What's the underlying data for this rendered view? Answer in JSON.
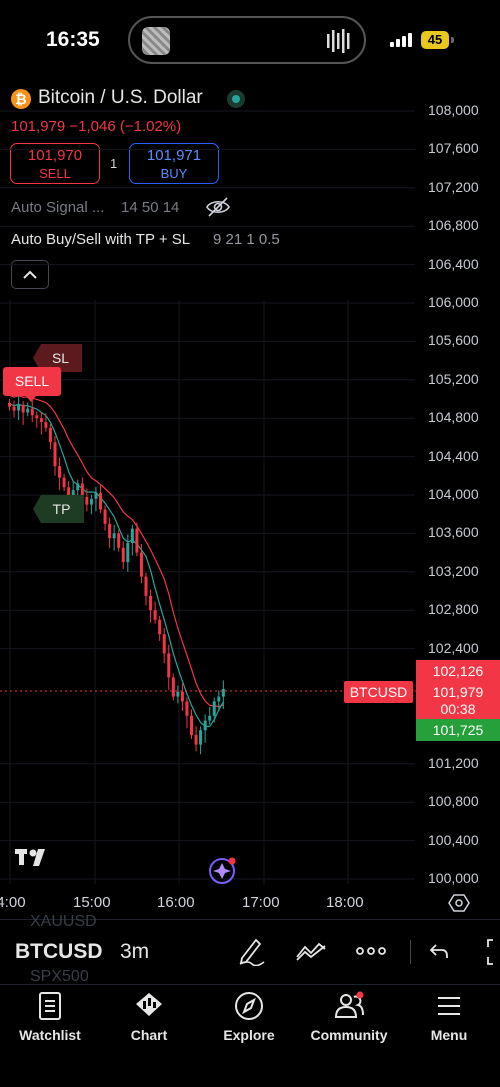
{
  "status_bar": {
    "time": "16:35",
    "battery": "45"
  },
  "header": {
    "coin_symbol": "₿",
    "title": "Bitcoin / U.S. Dollar",
    "price_line": "101,979 −1,046 (−1.02%)",
    "sell_price": "101,970",
    "sell_label": "SELL",
    "quantity": "1",
    "buy_price": "101,971",
    "buy_label": "BUY"
  },
  "indicators": {
    "auto_signal_label": "Auto Signal ...",
    "auto_signal_params": "14 50 14",
    "buy_sell_label": "Auto Buy/Sell with TP + SL",
    "buy_sell_params": "9 21 1 0.5"
  },
  "chart_data": {
    "type": "candlestick",
    "symbol": "BTCUSD",
    "y_ticks": [
      "108,000",
      "107,600",
      "107,200",
      "106,800",
      "106,400",
      "106,000",
      "105,600",
      "105,200",
      "104,800",
      "104,400",
      "104,000",
      "103,600",
      "103,200",
      "102,800",
      "102,400",
      "101,200",
      "100,800",
      "100,400",
      "100,000"
    ],
    "x_ticks": [
      "14:00",
      "15:00",
      "16:00",
      "17:00",
      "18:00"
    ],
    "ylim": [
      99950,
      108150
    ],
    "current_price": "101,979",
    "countdown": "00:38",
    "upper_price": "102,126",
    "lower_price": "101,725",
    "signal_labels": {
      "sl": "SL",
      "tp": "TP",
      "sell": "SELL"
    },
    "colors": {
      "up": "#26a69a",
      "down": "#f23645",
      "fast_ma": "#26a69a",
      "slow_ma": "#f23645"
    }
  },
  "toolbar": {
    "ghost_symbol_top": "XAUUSD",
    "symbol": "BTCUSD",
    "interval": "3m",
    "ghost_symbol_bottom": "SPX500"
  },
  "tabs": [
    {
      "label": "Watchlist",
      "icon": "watchlist-icon"
    },
    {
      "label": "Chart",
      "icon": "chart-icon"
    },
    {
      "label": "Explore",
      "icon": "compass-icon"
    },
    {
      "label": "Community",
      "icon": "community-icon"
    },
    {
      "label": "Menu",
      "icon": "menu-icon"
    }
  ]
}
